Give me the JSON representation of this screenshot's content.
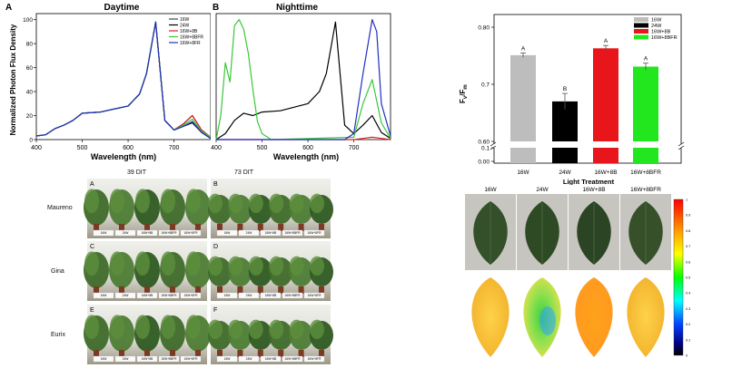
{
  "panel_a": {
    "letter": "A",
    "title": "Daytime",
    "ylabel": "Normalized Photon Flux Density",
    "xlabel": "Wavelength (nm)",
    "x_ticks": [
      "400",
      "500",
      "600",
      "700"
    ],
    "y_ticks": [
      "0",
      "20",
      "40",
      "60",
      "80",
      "100"
    ],
    "legend": [
      "16W",
      "24W",
      "16W+8B",
      "16W+8BFR",
      "16W+8FR"
    ]
  },
  "panel_b": {
    "letter": "B",
    "title": "Nighttime",
    "xlabel": "Wavelength (nm)",
    "x_ticks": [
      "400",
      "500",
      "600",
      "700"
    ]
  },
  "bar_chart": {
    "ylabel_main": "F",
    "ylabel_sub1": "v",
    "ylabel_mid": "/F",
    "ylabel_sub2": "m",
    "xlabel": "Light Treatment",
    "y_ticks": [
      "0.80",
      "0.7",
      "0.60",
      "0.1",
      "0.00"
    ]
  },
  "chart_data": [
    {
      "type": "line",
      "title": "Daytime",
      "xlabel": "Wavelength (nm)",
      "ylabel": "Normalized Photon Flux Density",
      "xlim": [
        400,
        780
      ],
      "ylim": [
        0,
        105
      ],
      "series": [
        {
          "name": "16W",
          "color": "#444444",
          "x": [
            400,
            420,
            440,
            460,
            480,
            500,
            540,
            600,
            625,
            640,
            660,
            680,
            700,
            720,
            740,
            760,
            780
          ],
          "y": [
            3,
            4,
            9,
            12,
            16,
            22,
            23,
            28,
            38,
            55,
            98,
            16,
            8,
            13,
            20,
            8,
            2
          ]
        },
        {
          "name": "24W",
          "color": "#000000",
          "x": [
            400,
            420,
            440,
            460,
            480,
            500,
            540,
            600,
            625,
            640,
            660,
            680,
            700,
            720,
            740,
            760,
            780
          ],
          "y": [
            3,
            4,
            9,
            12,
            16,
            22,
            23,
            28,
            38,
            55,
            98,
            16,
            8,
            11,
            14,
            6,
            1
          ]
        },
        {
          "name": "16W+8B",
          "color": "#e02020",
          "x": [
            400,
            420,
            440,
            460,
            480,
            500,
            540,
            600,
            625,
            640,
            660,
            680,
            700,
            720,
            740,
            760,
            780
          ],
          "y": [
            3,
            4,
            9,
            12,
            16,
            22,
            23,
            28,
            38,
            55,
            98,
            16,
            8,
            13,
            20,
            8,
            2
          ]
        },
        {
          "name": "16W+8BFR",
          "color": "#38c838",
          "x": [
            400,
            420,
            440,
            460,
            480,
            500,
            540,
            600,
            625,
            640,
            660,
            680,
            700,
            720,
            740,
            760,
            780
          ],
          "y": [
            3,
            4,
            9,
            12,
            16,
            22,
            23,
            28,
            38,
            55,
            98,
            16,
            8,
            12,
            17,
            7,
            2
          ]
        },
        {
          "name": "16W+8FR",
          "color": "#2030c0",
          "x": [
            400,
            420,
            440,
            460,
            480,
            500,
            540,
            600,
            625,
            640,
            660,
            680,
            700,
            720,
            740,
            760,
            780
          ],
          "y": [
            3,
            4,
            9,
            12,
            16,
            22,
            23,
            28,
            38,
            55,
            98,
            16,
            8,
            11,
            15,
            6,
            1
          ]
        }
      ]
    },
    {
      "type": "line",
      "title": "Nighttime",
      "xlabel": "Wavelength (nm)",
      "xlim": [
        400,
        780
      ],
      "ylim": [
        0,
        105
      ],
      "series": [
        {
          "name": "16W",
          "color": "#000000",
          "x": [
            400,
            420,
            440,
            460,
            480,
            500,
            540,
            600,
            625,
            640,
            660,
            680,
            700,
            720,
            740,
            760,
            780
          ],
          "y": [
            0,
            5,
            16,
            22,
            20,
            23,
            24,
            30,
            40,
            55,
            98,
            12,
            5,
            12,
            20,
            6,
            1
          ]
        },
        {
          "name": "16W+8B",
          "color": "#e02020",
          "x": [
            400,
            420,
            440,
            460,
            480,
            500,
            540,
            600,
            625,
            640,
            660,
            680,
            700,
            720,
            740,
            760,
            780
          ],
          "y": [
            0,
            0,
            0,
            0,
            0,
            0,
            0,
            0,
            0,
            0,
            0,
            0,
            0,
            1,
            2,
            1,
            0
          ]
        },
        {
          "name": "16W+8BFR",
          "color": "#38c838",
          "x": [
            400,
            410,
            420,
            430,
            440,
            450,
            460,
            470,
            480,
            490,
            500,
            520,
            700,
            720,
            740,
            760,
            780
          ],
          "y": [
            0,
            20,
            64,
            48,
            95,
            100,
            92,
            72,
            42,
            15,
            5,
            0,
            2,
            30,
            50,
            14,
            1
          ]
        },
        {
          "name": "16W+8FR",
          "color": "#2030c0",
          "x": [
            400,
            500,
            600,
            680,
            700,
            720,
            740,
            750,
            760,
            780
          ],
          "y": [
            0,
            0,
            0,
            0,
            5,
            55,
            100,
            90,
            30,
            3
          ]
        }
      ]
    },
    {
      "type": "bar",
      "xlabel": "Light Treatment",
      "ylabel": "Fv/Fm",
      "categories": [
        "16W",
        "24W",
        "16W+8B",
        "16W+8BFR"
      ],
      "values": [
        0.751,
        0.67,
        0.763,
        0.731
      ],
      "errors": [
        0.004,
        0.014,
        0.005,
        0.006
      ],
      "letters": [
        "A",
        "B",
        "A",
        "A"
      ],
      "colors": [
        "#bdbdbd",
        "#000000",
        "#e8151b",
        "#22e61e"
      ],
      "legend": [
        "16W",
        "24W",
        "16W+8B",
        "16W+8BFR"
      ],
      "ylim": [
        0.6,
        0.8
      ]
    }
  ],
  "photos": {
    "col1": "39 DIT",
    "col2": "73 DIT",
    "rows": [
      "Maureno",
      "Gina",
      "Eurix"
    ],
    "panels": [
      "A",
      "B",
      "C",
      "D",
      "E",
      "F"
    ],
    "tags": [
      "16W",
      "24W",
      "16W+8B",
      "16W+8BFR",
      "16W+8FR"
    ]
  },
  "leaf_panel": {
    "headers": [
      "16W",
      "24W",
      "16W+8B",
      "16W+8BFR"
    ],
    "scale_ticks": [
      "1",
      "0.9",
      "0.8",
      "0.7",
      "0.6",
      "0.5",
      "0.4",
      "0.3",
      "0.2",
      "0.1",
      "0"
    ]
  }
}
